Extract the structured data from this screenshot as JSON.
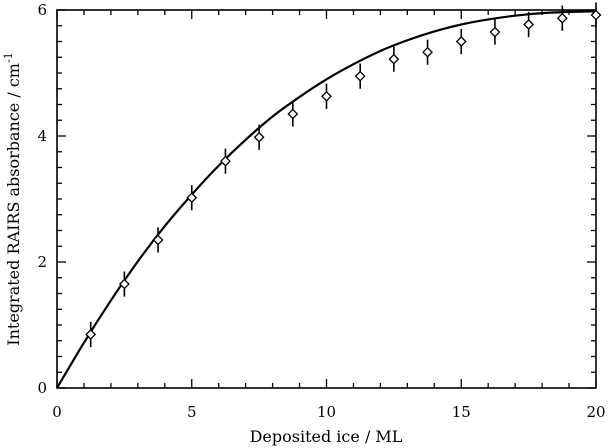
{
  "chart_data": {
    "type": "scatter",
    "xlabel": "Deposited ice / ML",
    "ylabel": "Integrated RAIRS absorbance / cm",
    "ylabel_superscript": "-1",
    "xlim": [
      0,
      20
    ],
    "ylim": [
      0,
      6
    ],
    "x_ticks": [
      0,
      5,
      10,
      15,
      20
    ],
    "y_ticks": [
      0,
      2,
      4,
      6
    ],
    "x_tick_labels": [
      "0",
      "5",
      "10",
      "15",
      "20"
    ],
    "y_tick_labels": [
      "0",
      "2",
      "4",
      "6"
    ],
    "grid": false,
    "series": [
      {
        "marker": "open-diamond",
        "x": [
          1.25,
          2.5,
          3.75,
          5.0,
          6.25,
          7.5,
          8.75,
          10.0,
          11.25,
          12.5,
          13.75,
          15.0,
          16.25,
          17.5,
          18.75,
          20.0
        ],
        "y": [
          0.85,
          1.65,
          2.35,
          3.02,
          3.6,
          3.98,
          4.35,
          4.63,
          4.95,
          5.22,
          5.33,
          5.5,
          5.65,
          5.77,
          5.87,
          5.92
        ],
        "error": [
          0.2,
          0.2,
          0.2,
          0.2,
          0.2,
          0.2,
          0.2,
          0.2,
          0.2,
          0.2,
          0.2,
          0.2,
          0.2,
          0.2,
          0.2,
          0.2
        ]
      }
    ],
    "fit": {
      "style": "solid-line",
      "x": [
        0,
        1,
        2,
        3,
        4,
        5,
        6,
        7,
        8,
        9,
        10,
        11,
        12,
        13,
        14,
        15,
        16,
        17,
        18,
        19,
        20
      ],
      "y": [
        0,
        0.72,
        1.39,
        2.01,
        2.57,
        3.07,
        3.53,
        3.94,
        4.31,
        4.62,
        4.9,
        5.14,
        5.35,
        5.52,
        5.66,
        5.77,
        5.85,
        5.91,
        5.95,
        5.97,
        5.98
      ]
    }
  }
}
